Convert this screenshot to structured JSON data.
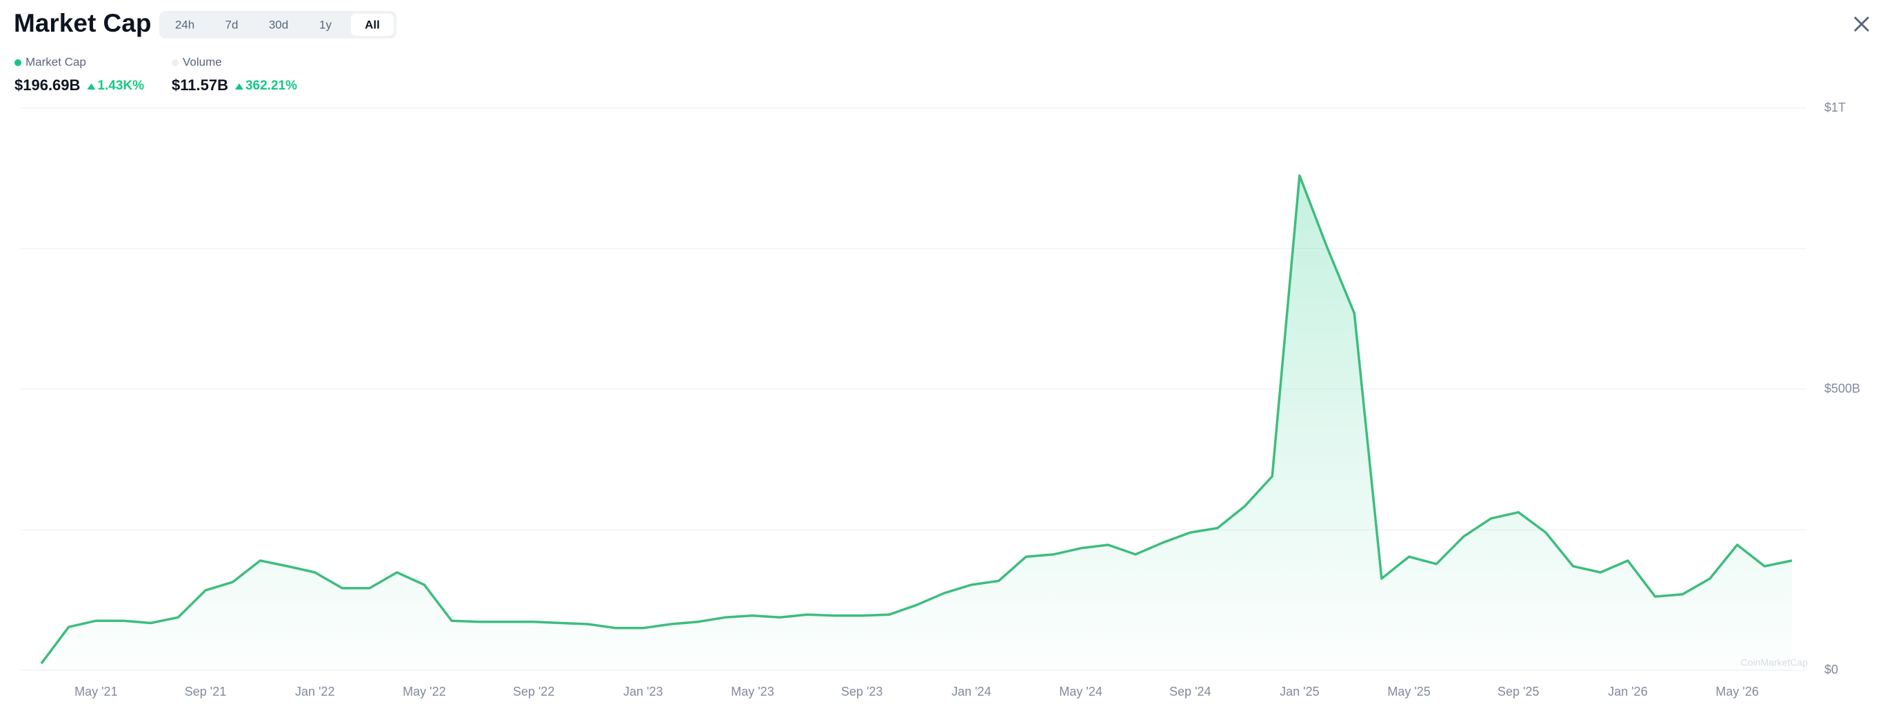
{
  "header": {
    "title": "Market Cap",
    "tabs": [
      "24h",
      "7d",
      "30d",
      "1y",
      "All"
    ],
    "active_tab": 4
  },
  "summary": [
    {
      "name": "Market Cap",
      "color": "#16c784",
      "value": "$196.69B",
      "change": "1.43K%"
    },
    {
      "name": "Volume",
      "color": "#eeeeee",
      "value": "$11.57B",
      "change": "362.21%"
    }
  ],
  "chart_data": {
    "type": "area",
    "x": [
      "2021-03",
      "2021-04",
      "2021-05",
      "2021-06",
      "2021-07",
      "2021-08",
      "2021-09",
      "2021-10",
      "2021-11",
      "2021-12",
      "2022-01",
      "2022-02",
      "2022-03",
      "2022-04",
      "2022-05",
      "2022-06",
      "2022-07",
      "2022-08",
      "2022-09",
      "2022-10",
      "2022-11",
      "2022-12",
      "2023-01",
      "2023-02",
      "2023-03",
      "2023-04",
      "2023-05",
      "2023-06",
      "2023-07",
      "2023-08",
      "2023-09",
      "2023-10",
      "2023-11",
      "2023-12",
      "2024-01",
      "2024-02",
      "2024-03",
      "2024-04",
      "2024-05",
      "2024-06",
      "2024-07",
      "2024-08",
      "2024-09",
      "2024-10",
      "2024-11",
      "2024-12",
      "2025-01",
      "2025-02",
      "2025-03",
      "2025-04",
      "2025-05",
      "2025-06",
      "2025-07",
      "2025-08",
      "2025-09",
      "2025-10",
      "2025-11",
      "2025-12",
      "2026-01",
      "2026-02",
      "2026-03",
      "2026-04",
      "2026-05",
      "2026-06",
      "2026-07"
    ],
    "series": [
      {
        "color": "#3dbd7d",
        "values": [
          12,
          77,
          88,
          88,
          84,
          94,
          142,
          157,
          195,
          185,
          174,
          146,
          146,
          174,
          152,
          88,
          86,
          86,
          86,
          84,
          82,
          75,
          75,
          82,
          86,
          94,
          97,
          94,
          99,
          97,
          97,
          99,
          116,
          137,
          152,
          159,
          202,
          206,
          217,
          223,
          206,
          227,
          245,
          253,
          292,
          345,
          880,
          753,
          635,
          163,
          202,
          189,
          238,
          270,
          281,
          245,
          185,
          174,
          195,
          131,
          135,
          163,
          223,
          185,
          195
        ]
      }
    ],
    "xlim": [
      "2021-03",
      "2026-07"
    ],
    "xticks": [
      {
        "value": "2021-05",
        "label": "May '21"
      },
      {
        "value": "2021-09",
        "label": "Sep '21"
      },
      {
        "value": "2022-01",
        "label": "Jan '22"
      },
      {
        "value": "2022-05",
        "label": "May '22"
      },
      {
        "value": "2022-09",
        "label": "Sep '22"
      },
      {
        "value": "2023-01",
        "label": "Jan '23"
      },
      {
        "value": "2023-05",
        "label": "May '23"
      },
      {
        "value": "2023-09",
        "label": "Sep '23"
      },
      {
        "value": "2024-01",
        "label": "Jan '24"
      },
      {
        "value": "2024-05",
        "label": "May '24"
      },
      {
        "value": "2024-09",
        "label": "Sep '24"
      },
      {
        "value": "2025-01",
        "label": "Jan '25"
      },
      {
        "value": "2025-05",
        "label": "May '25"
      },
      {
        "value": "2025-09",
        "label": "Sep '25"
      },
      {
        "value": "2026-01",
        "label": "Jan '26"
      },
      {
        "value": "2026-05",
        "label": "May '26"
      }
    ],
    "ylim": [
      0,
      1000
    ],
    "yticks": [
      {
        "value": 0,
        "label": "$0"
      },
      {
        "value": 250,
        "label": null
      },
      {
        "value": 500,
        "label": "$500B"
      },
      {
        "value": 750,
        "label": null
      },
      {
        "value": 1000,
        "label": "$1T"
      }
    ],
    "grid": true,
    "watermark": "CoinMarketCap"
  }
}
